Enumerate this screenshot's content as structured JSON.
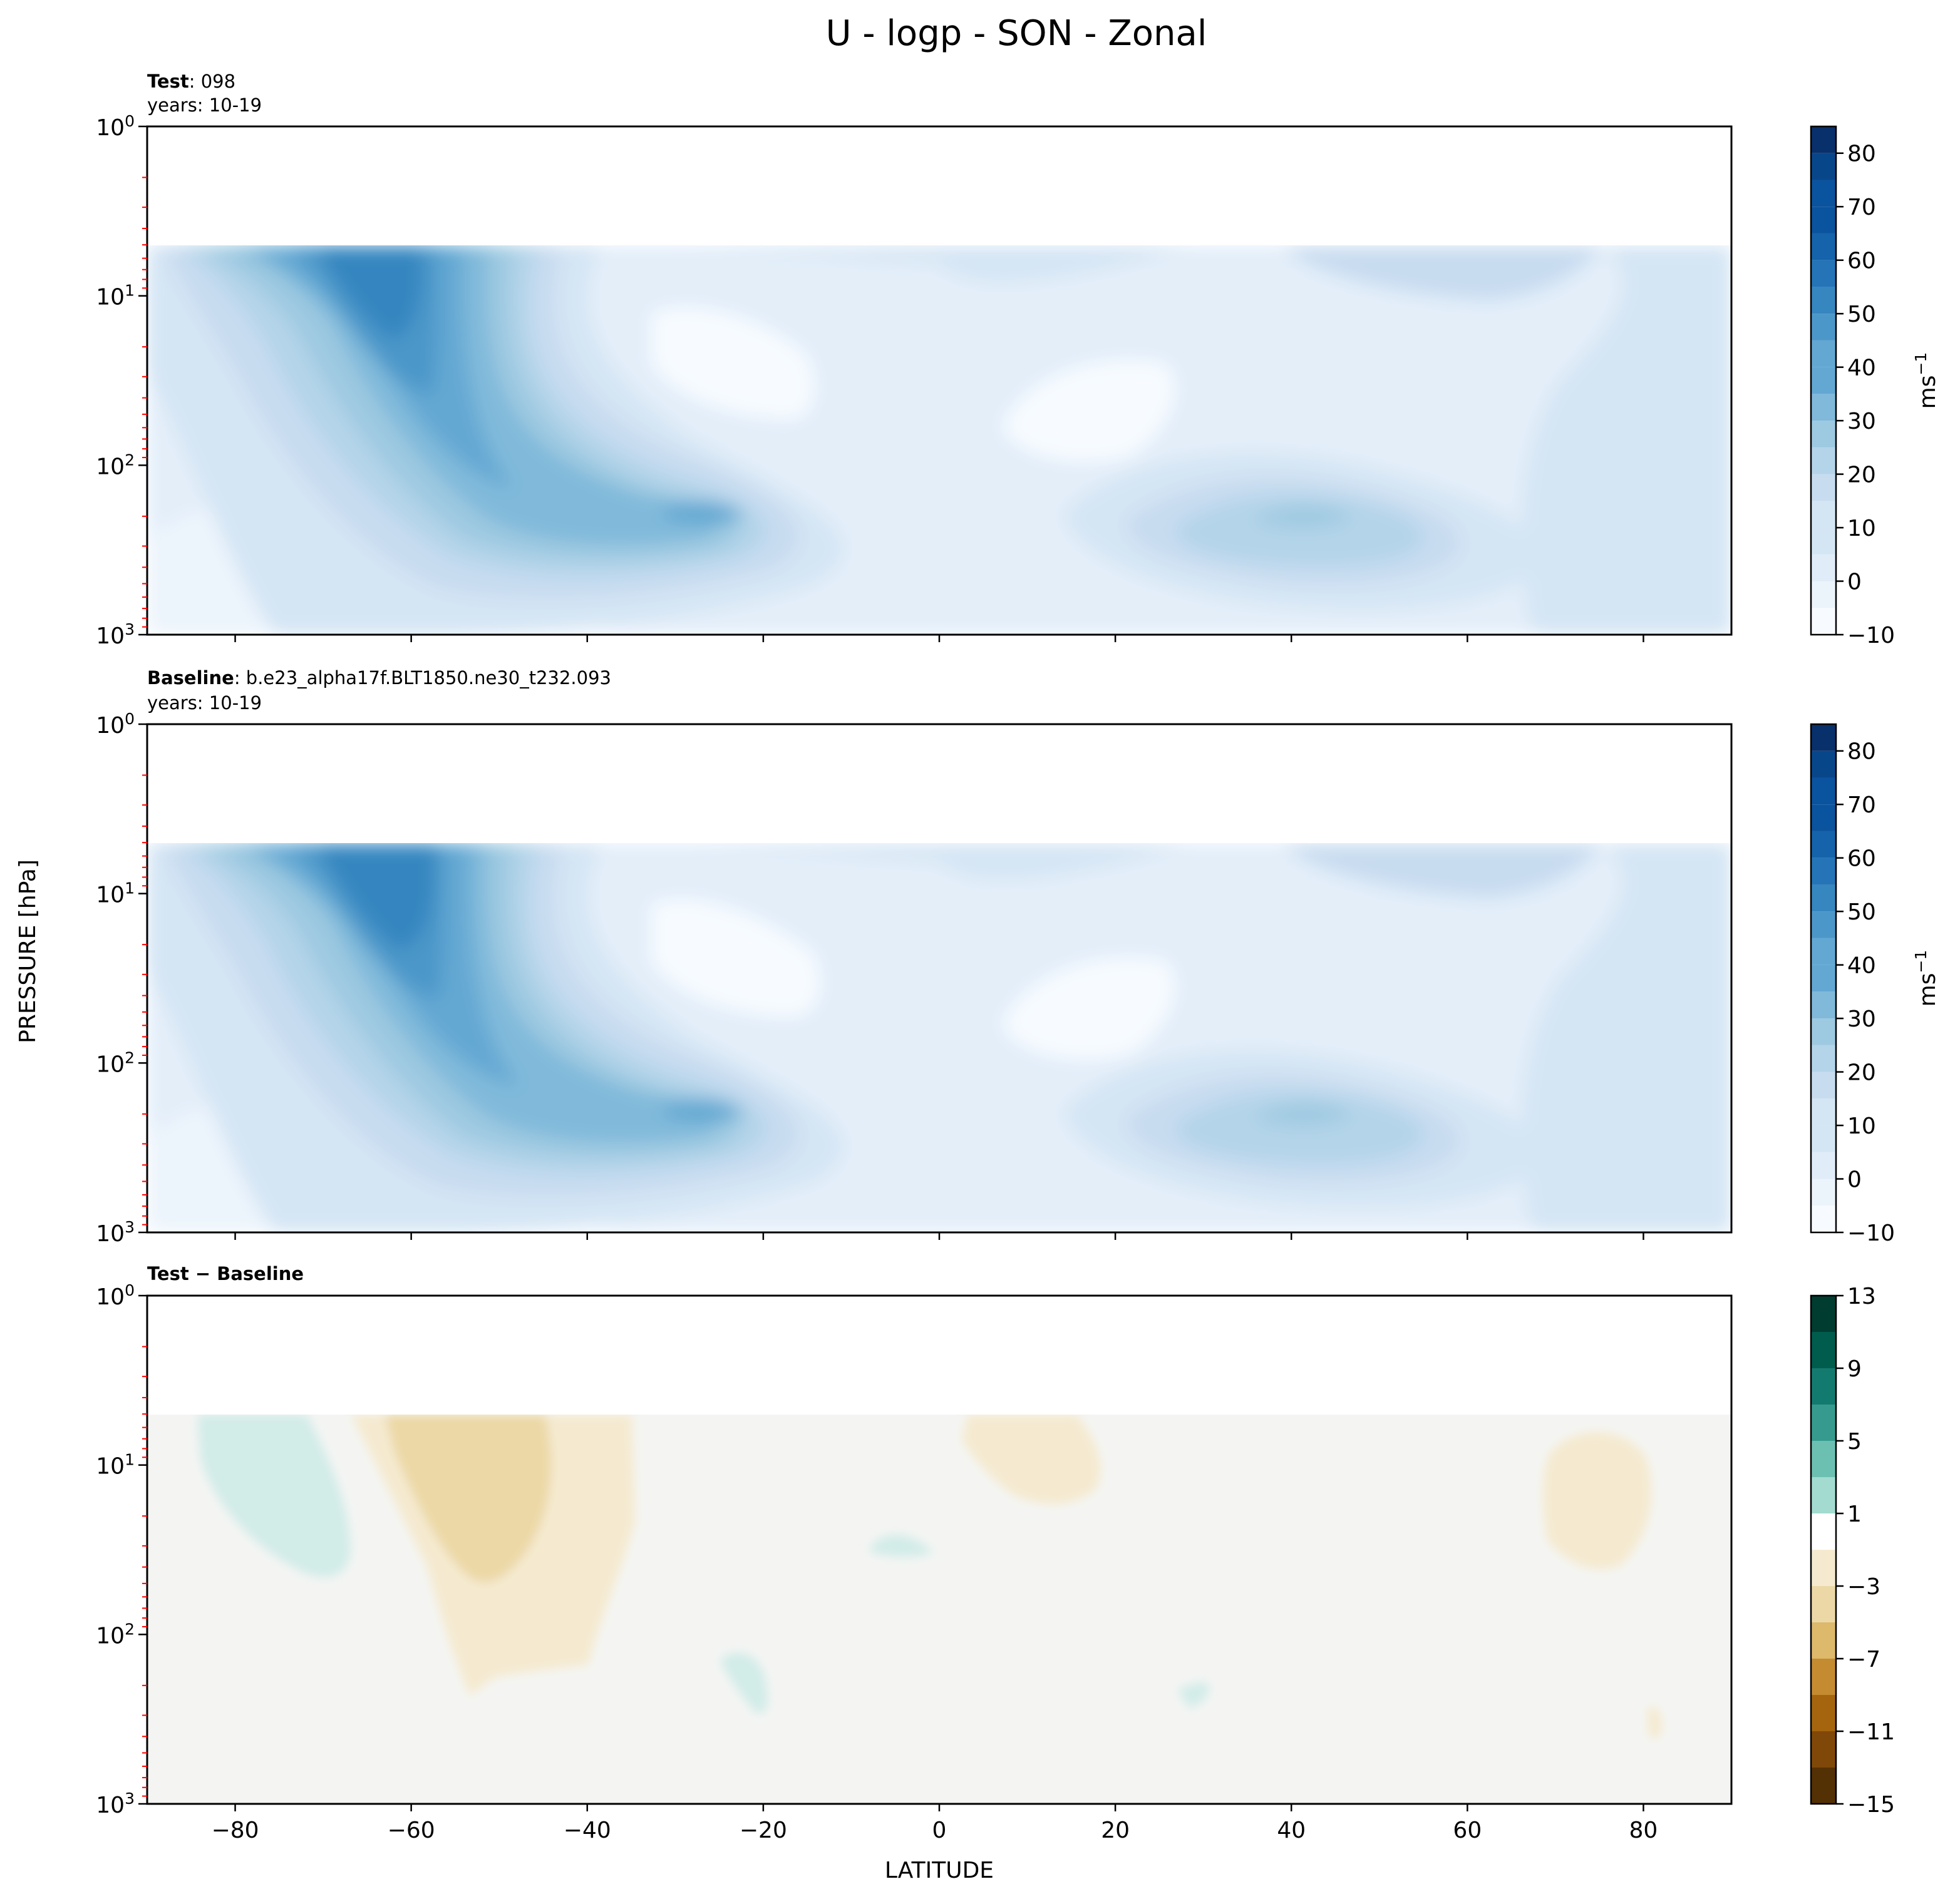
{
  "title": "U - logp - SON - Zonal",
  "ylabel": "PRESSURE [hPa]",
  "xlabel": "LATITUDE",
  "colors": {
    "blues": [
      "#f7fbff",
      "#ebf3fb",
      "#e0ecf8",
      "#d4e5f4",
      "#c8dcf0",
      "#b4d4e9",
      "#9dc9e1",
      "#80b9da",
      "#63a8d3",
      "#4b97c9",
      "#3686c0",
      "#2474b7",
      "#1563aa",
      "#0a539e",
      "#08468a",
      "#08306b"
    ],
    "diverging": [
      "#543005",
      "#7f4808",
      "#a5650f",
      "#c48b31",
      "#dcb96b",
      "#ecd8a6",
      "#f5ead0",
      "#f4f5f3",
      "#d2ece8",
      "#a3dbd0",
      "#6cc0b2",
      "#369b8e",
      "#137a70",
      "#005c4d",
      "#003c30"
    ],
    "minor_tick": "#ff0000"
  },
  "panels": [
    {
      "label_bold": "Test",
      "label_rest": ": 098",
      "years": "years: 10-19"
    },
    {
      "label_bold": "Baseline",
      "label_rest": ": b.e23_alpha17f.BLT1850.ne30_t232.093",
      "years": "years: 10-19"
    },
    {
      "label_bold": "Test − Baseline",
      "label_rest": "",
      "years": ""
    }
  ],
  "chart_data": [
    {
      "type": "heatmap",
      "panel": "Test",
      "x": "latitude (deg)",
      "y": "pressure (hPa, log scale)",
      "xlim": [
        -90,
        90
      ],
      "ylim": [
        1000,
        1
      ],
      "yscale": "log",
      "xticks": [
        -80,
        -60,
        -40,
        -20,
        0,
        20,
        40,
        60,
        80
      ],
      "yticks": [
        "10^0",
        "10^1",
        "10^2",
        "10^3"
      ],
      "colorbar": {
        "label": "ms⁻¹",
        "ticks": [
          "−10",
          "0",
          "10",
          "20",
          "30",
          "40",
          "50",
          "60",
          "70",
          "80"
        ],
        "levels": [
          -10,
          85
        ]
      },
      "features": [
        {
          "name": "SH stratospheric jet",
          "lat": -64,
          "p_hPa": 8,
          "u": 50
        },
        {
          "name": "SH subtropical jet",
          "lat": -30,
          "p_hPa": 200,
          "u": 37
        },
        {
          "name": "NH jet",
          "lat": 42,
          "p_hPa": 200,
          "u": 30
        },
        {
          "name": "tropical minimum",
          "lat": -25,
          "p_hPa": 30,
          "u": -5
        },
        {
          "name": "tropical minimum",
          "lat": 12,
          "p_hPa": 50,
          "u": -5
        }
      ]
    },
    {
      "type": "heatmap",
      "panel": "Baseline",
      "xlim": [
        -90,
        90
      ],
      "ylim": [
        1000,
        1
      ],
      "yscale": "log",
      "colorbar": {
        "label": "ms⁻¹",
        "ticks": [
          "−10",
          "0",
          "10",
          "20",
          "30",
          "40",
          "50",
          "60",
          "70",
          "80"
        ],
        "levels": [
          -10,
          85
        ]
      },
      "features": [
        {
          "name": "SH stratospheric jet",
          "lat": -63,
          "p_hPa": 9,
          "u": 50
        },
        {
          "name": "SH subtropical jet",
          "lat": -30,
          "p_hPa": 200,
          "u": 37
        },
        {
          "name": "NH jet",
          "lat": 43,
          "p_hPa": 200,
          "u": 30
        }
      ]
    },
    {
      "type": "heatmap",
      "panel": "Test − Baseline",
      "xlim": [
        -90,
        90
      ],
      "ylim": [
        1000,
        1
      ],
      "yscale": "log",
      "colorbar": {
        "label": "",
        "ticks": [
          "13",
          "9",
          "5",
          "1",
          "−3",
          "−7",
          "−11",
          "−15"
        ],
        "levels": [
          -15,
          13
        ]
      },
      "features": [
        {
          "name": "positive anomaly",
          "lat": -78,
          "p_hPa": 20,
          "du": 2
        },
        {
          "name": "negative anomaly",
          "lat": -50,
          "p_hPa": 20,
          "du": -4
        },
        {
          "name": "negative anomaly",
          "lat": 10,
          "p_hPa": 10,
          "du": -2
        },
        {
          "name": "negative anomaly",
          "lat": 75,
          "p_hPa": 20,
          "du": -2
        }
      ]
    }
  ]
}
